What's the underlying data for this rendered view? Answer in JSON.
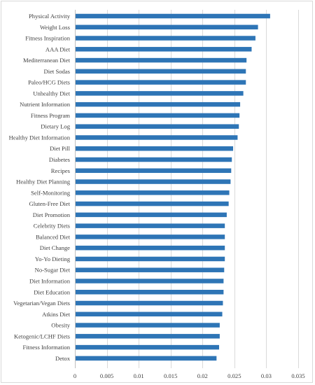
{
  "chart_data": {
    "type": "bar",
    "orientation": "horizontal",
    "categories": [
      "Physical Activity",
      "Weight Loss",
      "Fitness Inspiration",
      "AAA Diet",
      "Mediterranean Diet",
      "Diet Sodas",
      "Paleo/HCG Diets",
      "Unhealthy Diet",
      "Nutrient Information",
      "Fitness Program",
      "Dietary Log",
      "Healthy Diet Information",
      "Diet Pill",
      "Diabetes",
      "Recipes",
      "Healthy Diet Planning",
      "Self-Monitoring",
      "Gluten-Free Diet",
      "Diet Promotion",
      "Celebrity Diets",
      "Balanced Diet",
      "Diet Change",
      "Yo-Yo Dieting",
      "No-Sugar Diet",
      "Diet Information",
      "Diet Education",
      "Vegetarian/Vegan Diets",
      "Atkins Diet",
      "Obesity",
      "Ketogenic/LCHF Diets",
      "Fitness Information",
      "Detox"
    ],
    "values": [
      0.0306,
      0.0287,
      0.0283,
      0.0277,
      0.0269,
      0.0268,
      0.0268,
      0.0264,
      0.0259,
      0.0258,
      0.0257,
      0.0255,
      0.0248,
      0.0246,
      0.0245,
      0.0244,
      0.0242,
      0.0241,
      0.0238,
      0.0235,
      0.0235,
      0.0235,
      0.0235,
      0.0234,
      0.0233,
      0.0233,
      0.0232,
      0.0231,
      0.0227,
      0.0227,
      0.0226,
      0.0222
    ],
    "xticks": [
      "0",
      "0.005",
      "0.01",
      "0.015",
      "0.02",
      "0.025",
      "0.03",
      "0.035"
    ],
    "xlim": [
      0,
      0.035
    ],
    "grid": true,
    "bar_color": "#2e75b6"
  }
}
